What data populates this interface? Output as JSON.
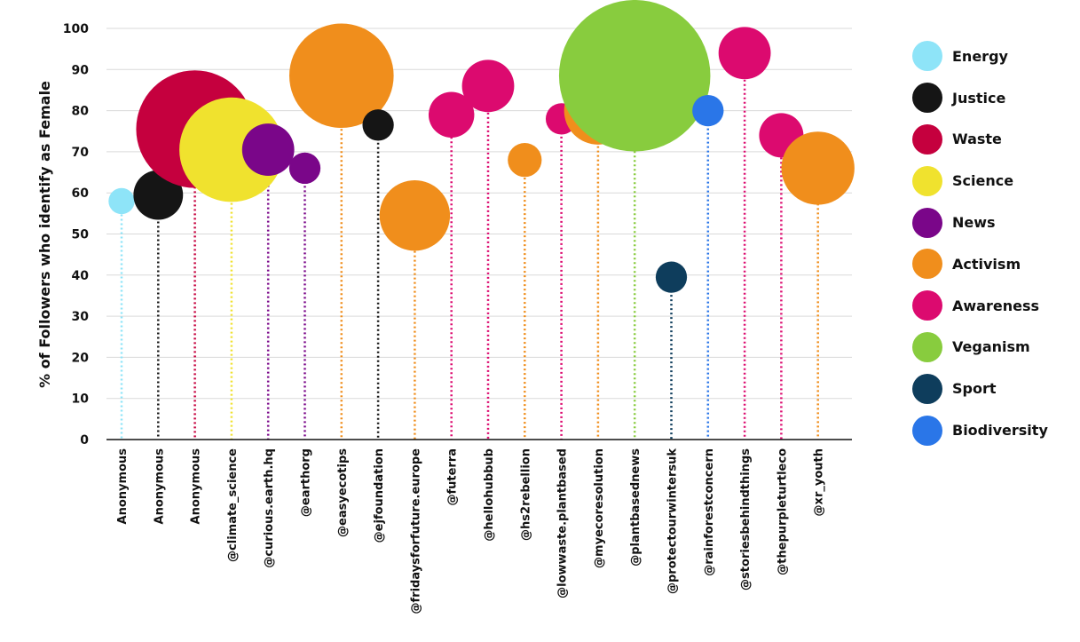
{
  "chart_data": {
    "type": "scatter",
    "ylabel": "% of Followers who identify as Female",
    "xlabel": "",
    "ylim": [
      0,
      100
    ],
    "yticks": [
      0,
      10,
      20,
      30,
      40,
      50,
      60,
      70,
      80,
      90,
      100
    ],
    "grid": true,
    "legend_position": "right",
    "categories": [
      "Anonymous",
      "Anonymous",
      "Anonymous",
      "@climate_science",
      "@curious.earth.hq",
      "@earthorg",
      "@easyecotips",
      "@ejfoundation",
      "@fridaysforfuture.europe",
      "@futerra",
      "@hellohubbub",
      "@hs2rebellion",
      "@lowwaste.plantbased",
      "@myecoresolution",
      "@plantbasednews",
      "@protectourwintersuk",
      "@rainforestconcern",
      "@storiesbehindthings",
      "@thepurpleturtleco",
      "@xr_youth"
    ],
    "points": [
      {
        "account": "Anonymous",
        "value": 58,
        "size": 1.0,
        "category": "Energy"
      },
      {
        "account": "Anonymous",
        "value": 59.5,
        "size": 1.9,
        "category": "Justice"
      },
      {
        "account": "Anonymous",
        "value": 75.5,
        "size": 4.5,
        "category": "Waste"
      },
      {
        "account": "@climate_science",
        "value": 70.5,
        "size": 4.0,
        "category": "Science"
      },
      {
        "account": "@curious.earth.hq",
        "value": 70.5,
        "size": 2.0,
        "category": "News"
      },
      {
        "account": "@earthorg",
        "value": 66,
        "size": 1.2,
        "category": "News"
      },
      {
        "account": "@easyecotips",
        "value": 88.5,
        "size": 4.0,
        "category": "Activism"
      },
      {
        "account": "@ejfoundation",
        "value": 76.5,
        "size": 1.2,
        "category": "Justice"
      },
      {
        "account": "@fridaysforfuture.europe",
        "value": 54.5,
        "size": 2.7,
        "category": "Activism"
      },
      {
        "account": "@futerra",
        "value": 79,
        "size": 1.75,
        "category": "Awareness"
      },
      {
        "account": "@hellohubbub",
        "value": 86,
        "size": 2.0,
        "category": "Awareness"
      },
      {
        "account": "@hs2rebellion",
        "value": 68,
        "size": 1.3,
        "category": "Activism"
      },
      {
        "account": "@lowwaste.plantbased",
        "value": 78,
        "size": 1.2,
        "category": "Awareness"
      },
      {
        "account": "@myecoresolution",
        "value": 80,
        "size": 2.6,
        "category": "Activism"
      },
      {
        "account": "@plantbasednews",
        "value": 88.5,
        "size": 5.8,
        "category": "Veganism"
      },
      {
        "account": "@protectourwintersuk",
        "value": 39.5,
        "size": 1.2,
        "category": "Sport"
      },
      {
        "account": "@rainforestconcern",
        "value": 80,
        "size": 1.2,
        "category": "Biodiversity"
      },
      {
        "account": "@storiesbehindthings",
        "value": 94,
        "size": 2.0,
        "category": "Awareness"
      },
      {
        "account": "@thepurpleturtleco",
        "value": 74,
        "size": 1.7,
        "category": "Awareness"
      },
      {
        "account": "@xr_youth",
        "value": 66,
        "size": 2.8,
        "category": "Activism"
      }
    ],
    "legend": [
      {
        "name": "Energy",
        "color": "#8ee4f8"
      },
      {
        "name": "Justice",
        "color": "#151515"
      },
      {
        "name": "Waste",
        "color": "#c5003e"
      },
      {
        "name": "Science",
        "color": "#f0e22e"
      },
      {
        "name": "News",
        "color": "#7a0689"
      },
      {
        "name": "Activism",
        "color": "#f08e1c"
      },
      {
        "name": "Awareness",
        "color": "#dc0a6f"
      },
      {
        "name": "Veganism",
        "color": "#88cc3e"
      },
      {
        "name": "Sport",
        "color": "#0e3d5c"
      },
      {
        "name": "Biodiversity",
        "color": "#2a76e8"
      }
    ]
  }
}
